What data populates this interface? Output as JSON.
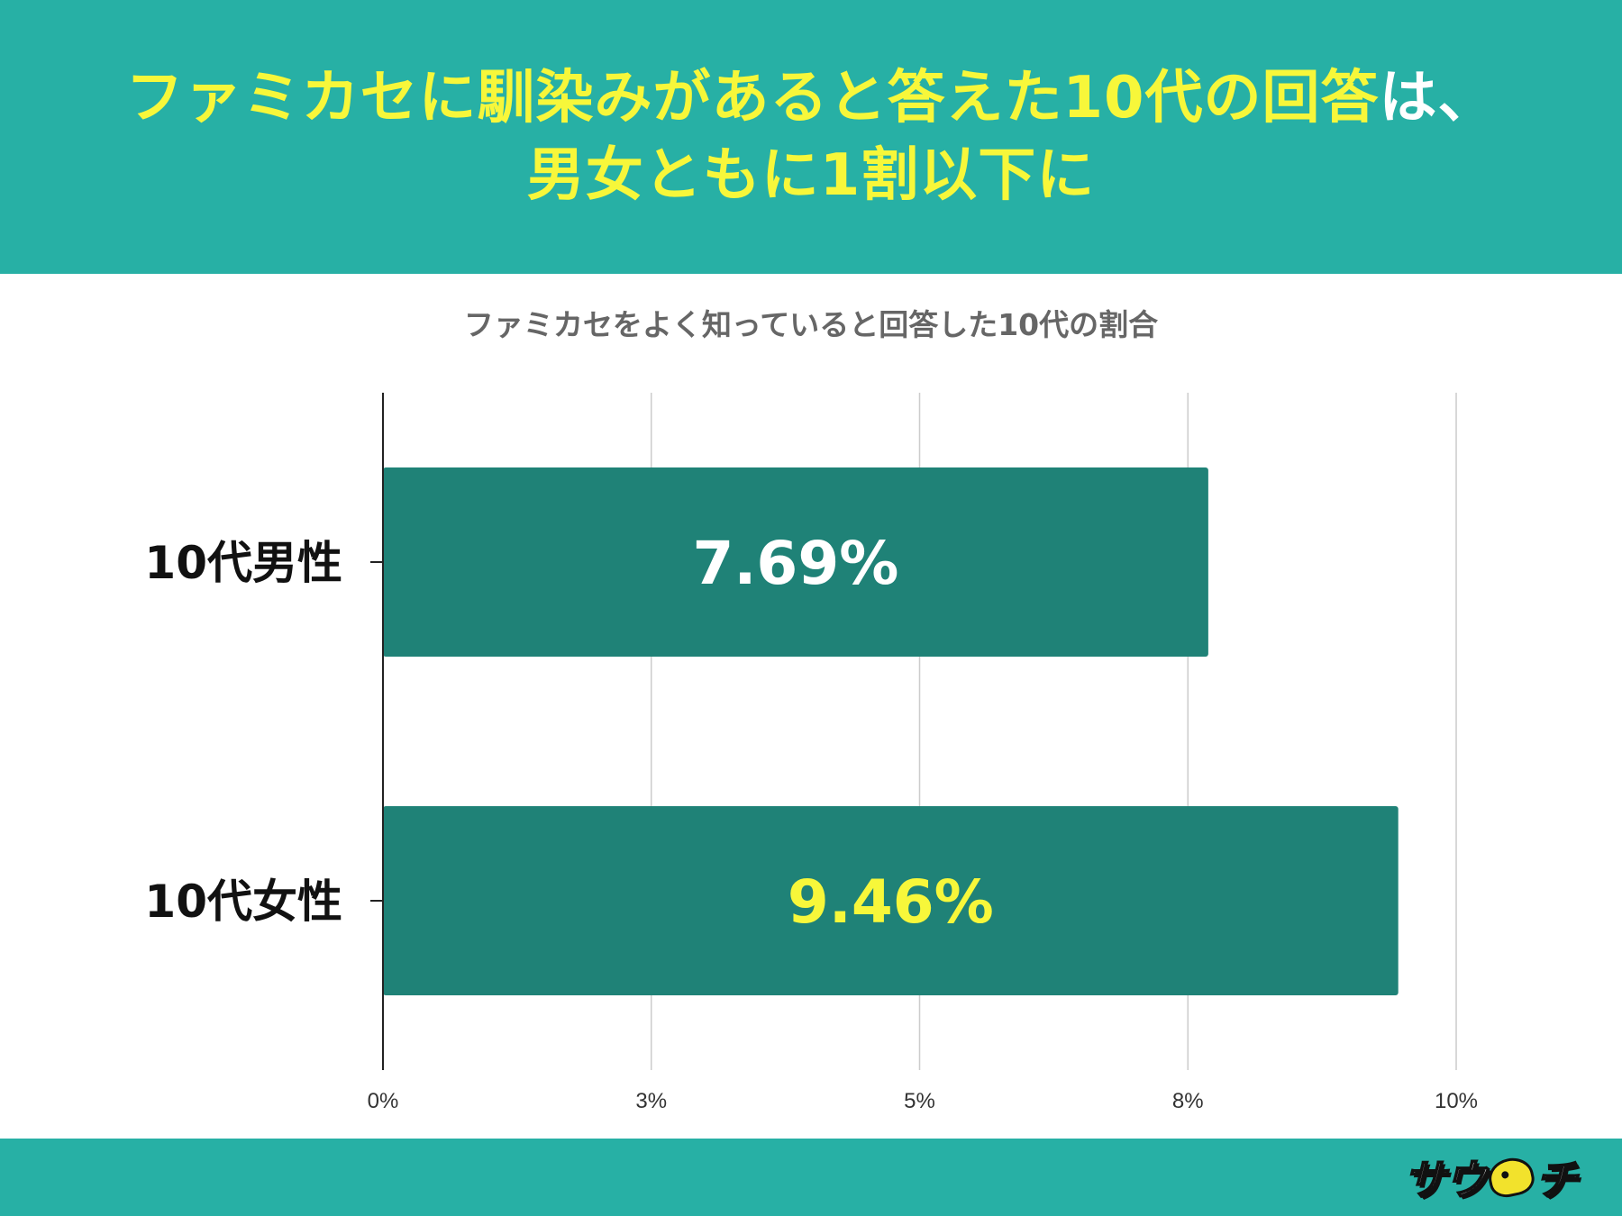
{
  "header": {
    "line1_highlight": "ファミカセに馴染みがあると答えた10代の回答",
    "line1_rest": "は、",
    "line2": "男女ともに1割以下に"
  },
  "footer": {
    "logo_text": "サウ",
    "logo_text_end": "チ"
  },
  "colors": {
    "teal": "#27b0a5",
    "bar": "#1f8277",
    "highlight_yellow": "#f7f73a",
    "white": "#ffffff",
    "title_gray": "#666666",
    "grid": "#cccccc",
    "axis": "#222222"
  },
  "chart_data": {
    "type": "bar",
    "orientation": "horizontal",
    "title": "ファミカセをよく知っていると回答した10代の割合",
    "categories": [
      "10代男性",
      "10代女性"
    ],
    "values": [
      7.69,
      9.46
    ],
    "data_labels": [
      "7.69%",
      "9.46%"
    ],
    "data_label_colors": [
      "#ffffff",
      "#f7f73a"
    ],
    "xlim": [
      0,
      10
    ],
    "xticks": [
      0,
      2.5,
      5,
      7.5,
      10
    ],
    "xtick_labels": [
      "0%",
      "3%",
      "5%",
      "8%",
      "10%"
    ],
    "grid": true,
    "legend": "none"
  }
}
